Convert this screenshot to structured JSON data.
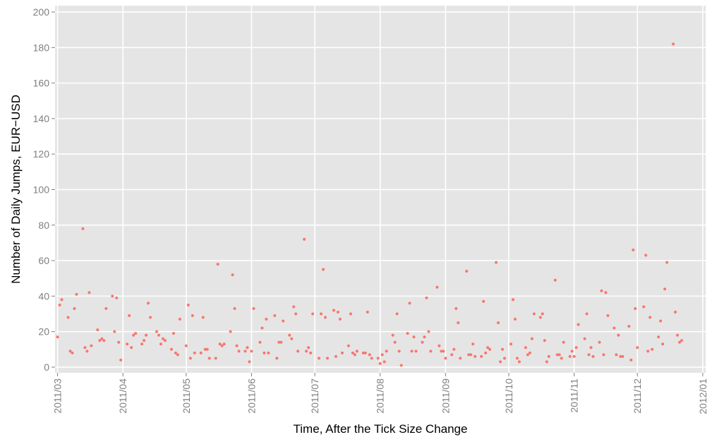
{
  "chart_data": {
    "type": "scatter",
    "xlabel": "Time, After the Tick Size Change",
    "ylabel": "Number of Daily Jumps, EUR−USD",
    "color": "#f8766d",
    "x": [
      0,
      1,
      2,
      5,
      6,
      7,
      8,
      9,
      12,
      13,
      14,
      15,
      16,
      19,
      20,
      21,
      22,
      23,
      26,
      27,
      28,
      29,
      30,
      33,
      34,
      35,
      36,
      37,
      40,
      41,
      42,
      43,
      44,
      47,
      48,
      49,
      50,
      51,
      54,
      55,
      56,
      57,
      58,
      61,
      62,
      63,
      64,
      65,
      68,
      69,
      70,
      71,
      72,
      75,
      76,
      77,
      78,
      79,
      82,
      83,
      84,
      85,
      86,
      89,
      90,
      91,
      92,
      93,
      96,
      97,
      98,
      99,
      100,
      103,
      104,
      105,
      106,
      107,
      110,
      111,
      112,
      113,
      114,
      117,
      118,
      119,
      120,
      121,
      124,
      125,
      126,
      127,
      128,
      131,
      132,
      133,
      134,
      135,
      138,
      139,
      140,
      141,
      142,
      145,
      146,
      147,
      148,
      149,
      152,
      153,
      154,
      155,
      156,
      159,
      160,
      161,
      162,
      163,
      166,
      167,
      168,
      169,
      170,
      173,
      174,
      175,
      176,
      177,
      180,
      181,
      182,
      183,
      184,
      187,
      188,
      189,
      190,
      191,
      194,
      195,
      196,
      197,
      198,
      201,
      202,
      203,
      204,
      205,
      208,
      209,
      210,
      211,
      212,
      215,
      216,
      217,
      218,
      219,
      222,
      223,
      224,
      225,
      226,
      229,
      230,
      231,
      232,
      233,
      236,
      237,
      238,
      239,
      240,
      243,
      244,
      245,
      246,
      247,
      250,
      251,
      252,
      253,
      254,
      257,
      258,
      259,
      260,
      261,
      264,
      265,
      266,
      267,
      268,
      271,
      272,
      273,
      274,
      275,
      278,
      279,
      280,
      281,
      282,
      285,
      286,
      287,
      288,
      289,
      292,
      293,
      294,
      295,
      296
    ],
    "y": [
      17,
      35,
      38,
      28,
      9,
      8,
      33,
      41,
      78,
      11,
      9,
      42,
      12,
      21,
      15,
      16,
      15,
      33,
      40,
      20,
      39,
      14,
      4,
      13,
      29,
      11,
      18,
      19,
      13,
      15,
      18,
      36,
      28,
      20,
      18,
      13,
      16,
      15,
      10,
      19,
      8,
      7,
      27,
      12,
      35,
      5,
      29,
      8,
      8,
      28,
      10,
      10,
      5,
      5,
      58,
      13,
      12,
      13,
      20,
      52,
      33,
      12,
      9,
      9,
      11,
      3,
      9,
      33,
      14,
      22,
      8,
      27,
      8,
      29,
      5,
      14,
      14,
      26,
      18,
      16,
      34,
      30,
      9,
      72,
      9,
      11,
      8,
      30,
      5,
      30,
      55,
      28,
      5,
      32,
      6,
      31,
      27,
      8,
      12,
      30,
      8,
      7,
      9,
      8,
      8,
      31,
      7,
      5,
      5,
      2,
      7,
      3,
      9,
      18,
      14,
      30,
      9,
      1,
      19,
      36,
      9,
      17,
      9,
      14,
      17,
      39,
      20,
      9,
      45,
      12,
      9,
      9,
      5,
      7,
      10,
      33,
      25,
      5,
      54,
      7,
      7,
      13,
      6,
      6,
      37,
      8,
      11,
      10,
      59,
      25,
      3,
      10,
      5,
      13,
      38,
      27,
      5,
      3,
      11,
      7,
      8,
      16,
      30,
      28,
      30,
      15,
      3,
      6,
      49,
      7,
      7,
      5,
      14,
      6,
      9,
      6,
      11,
      24,
      16,
      30,
      7,
      11,
      6,
      14,
      43,
      7,
      42,
      29,
      22,
      7,
      18,
      6,
      6,
      23,
      4,
      66,
      33,
      11,
      34,
      63,
      9,
      28,
      10,
      17,
      26,
      13,
      44,
      59,
      182,
      31,
      18,
      14,
      15
    ],
    "xlim": [
      -1.2,
      307.4
    ],
    "xticks": [
      {
        "value": 0,
        "label": "2011/03"
      },
      {
        "value": 31,
        "label": "2011/04"
      },
      {
        "value": 61,
        "label": "2011/05"
      },
      {
        "value": 92,
        "label": "2011/06"
      },
      {
        "value": 122,
        "label": "2011/07"
      },
      {
        "value": 153,
        "label": "2011/08"
      },
      {
        "value": 184,
        "label": "2011/09"
      },
      {
        "value": 214,
        "label": "2011/10"
      },
      {
        "value": 245,
        "label": "2011/11"
      },
      {
        "value": 275,
        "label": "2011/12"
      },
      {
        "value": 306,
        "label": "2012/01"
      }
    ],
    "ylim": [
      -3.2,
      203.6
    ],
    "yticks": [
      0,
      20,
      40,
      60,
      80,
      100,
      120,
      140,
      160,
      180,
      200
    ],
    "grid": true
  }
}
